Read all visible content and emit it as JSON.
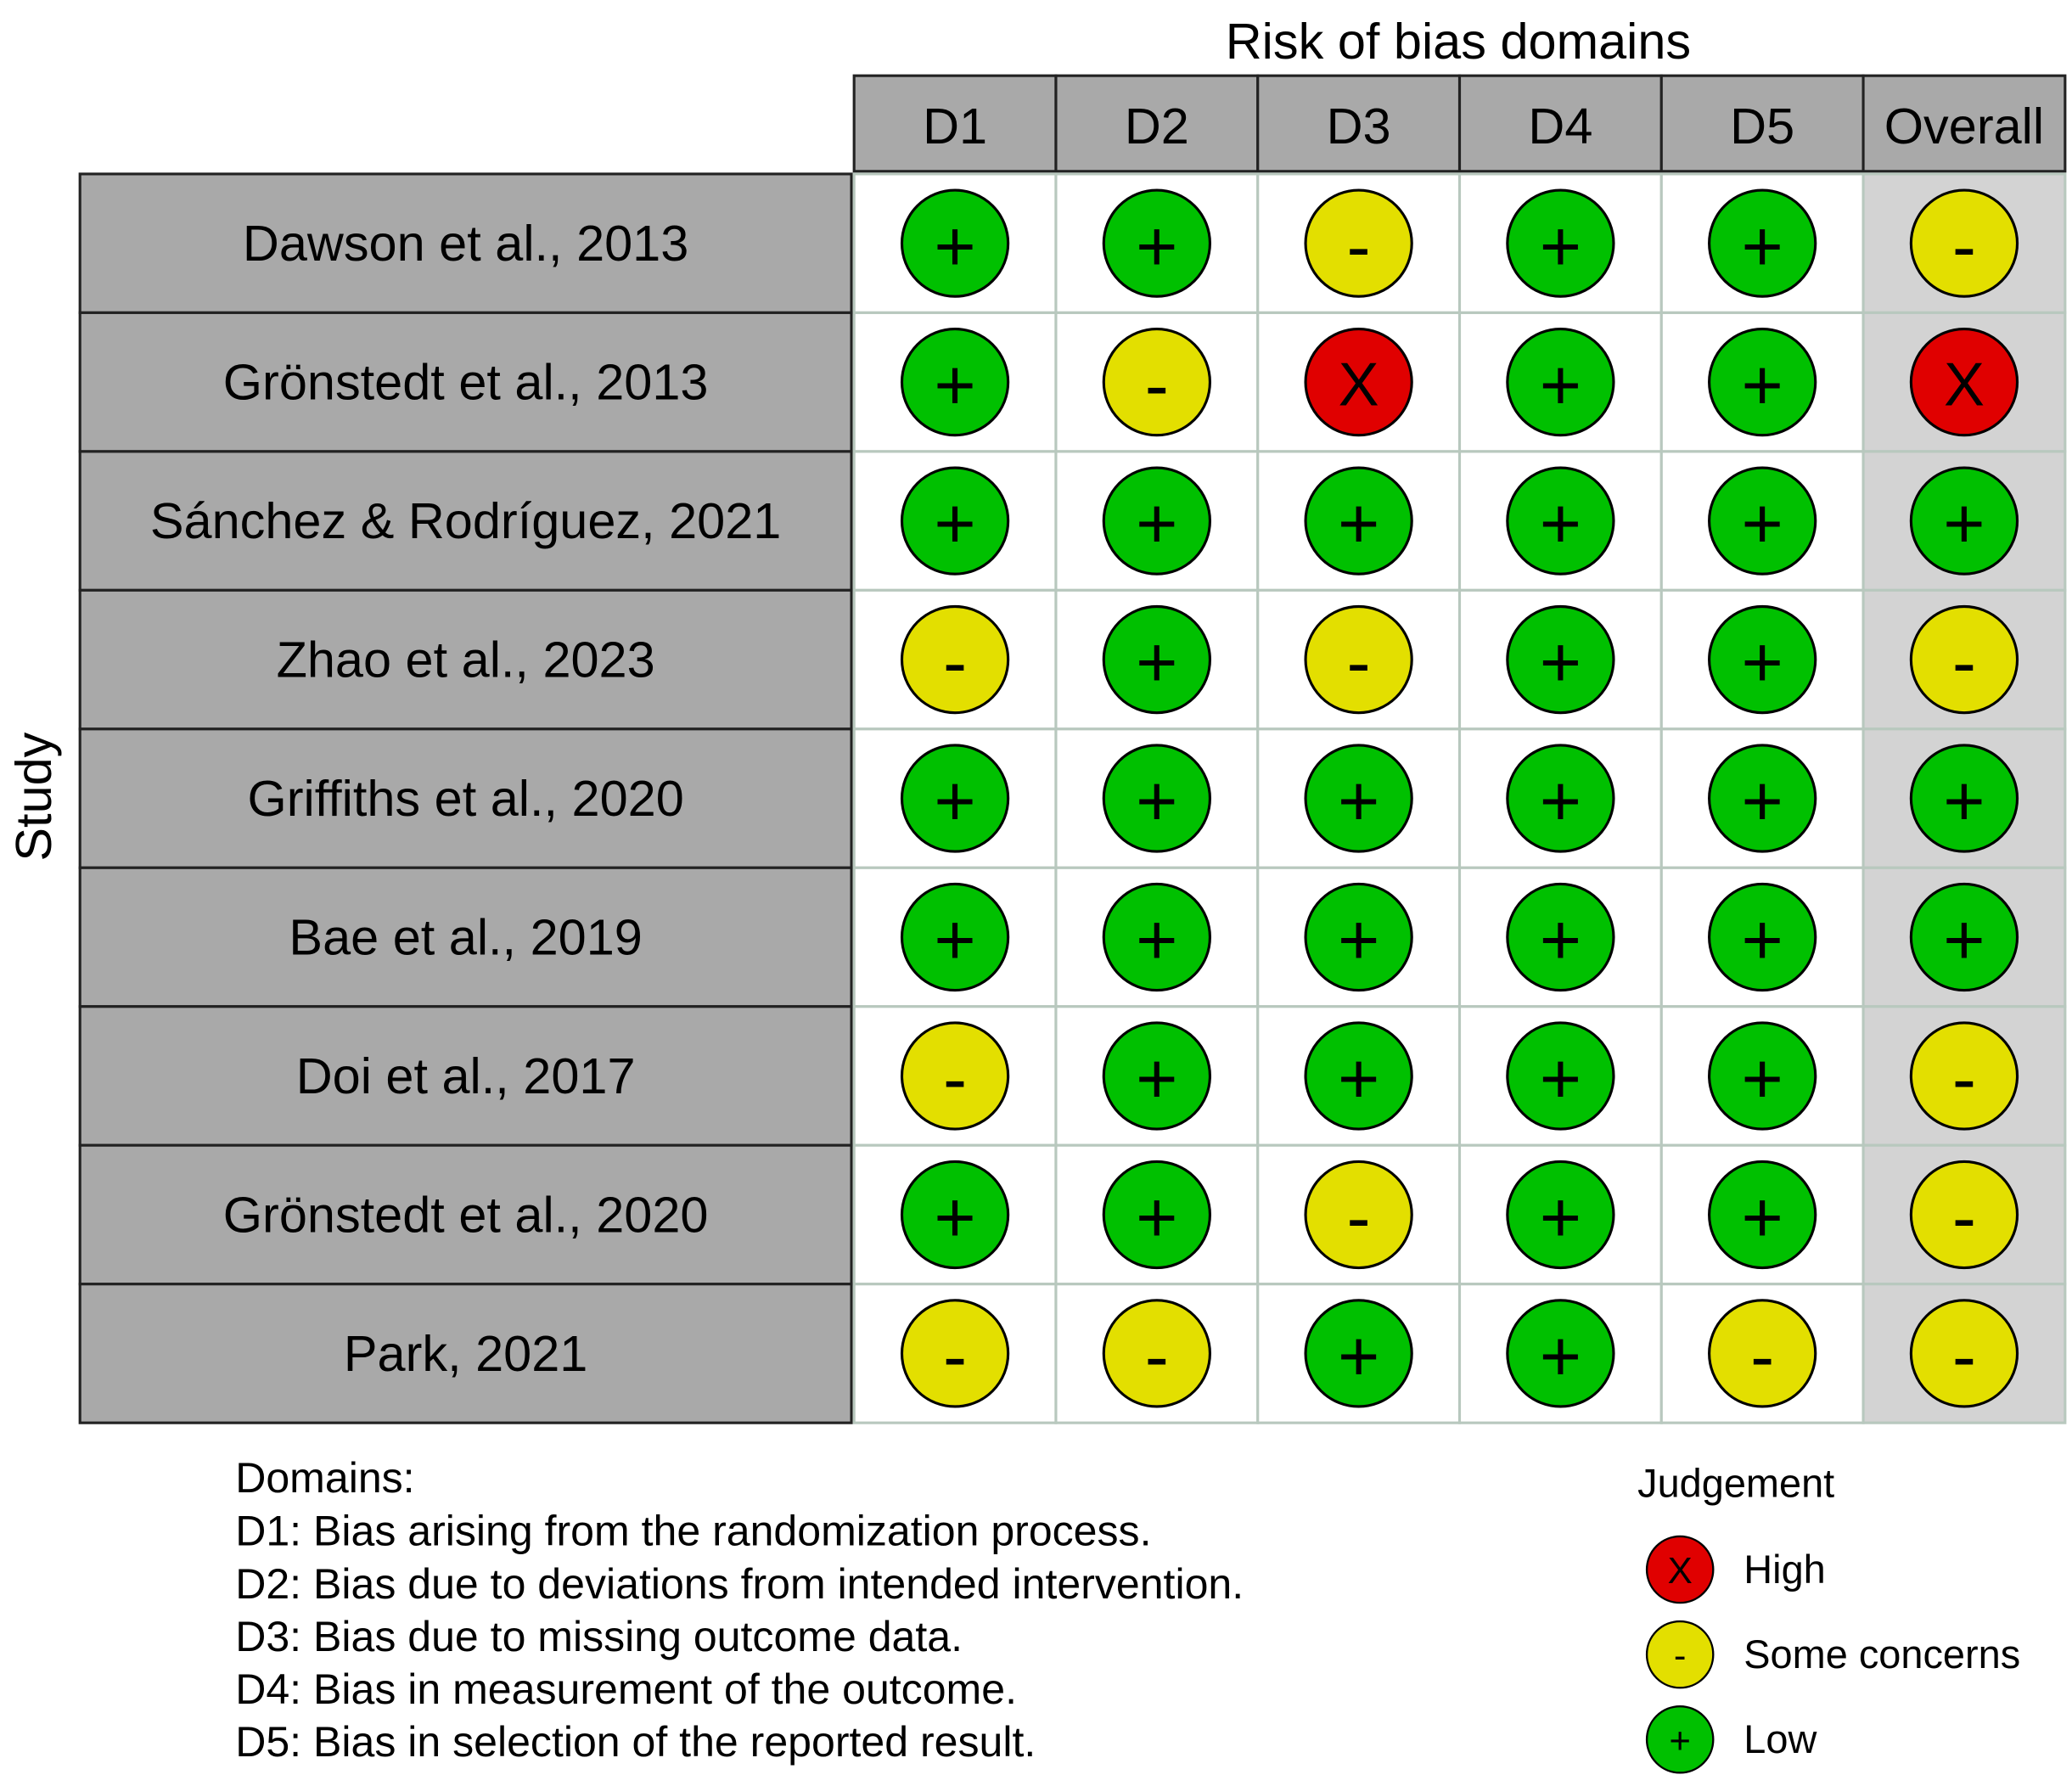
{
  "title": "Risk of bias domains",
  "row_axis_label": "Study",
  "columns": [
    "D1",
    "D2",
    "D3",
    "D4",
    "D5",
    "Overall"
  ],
  "rows": [
    {
      "study": "Dawson et al., 2013",
      "judgements": [
        "+",
        "+",
        "-",
        "+",
        "+",
        "-"
      ]
    },
    {
      "study": "Grönstedt et al., 2013",
      "judgements": [
        "+",
        "-",
        "X",
        "+",
        "+",
        "X"
      ]
    },
    {
      "study": "Sánchez & Rodríguez, 2021",
      "judgements": [
        "+",
        "+",
        "+",
        "+",
        "+",
        "+"
      ]
    },
    {
      "study": "Zhao et al., 2023",
      "judgements": [
        "-",
        "+",
        "-",
        "+",
        "+",
        "-"
      ]
    },
    {
      "study": "Griffiths et al., 2020",
      "judgements": [
        "+",
        "+",
        "+",
        "+",
        "+",
        "+"
      ]
    },
    {
      "study": "Bae et al., 2019",
      "judgements": [
        "+",
        "+",
        "+",
        "+",
        "+",
        "+"
      ]
    },
    {
      "study": "Doi et al., 2017",
      "judgements": [
        "-",
        "+",
        "+",
        "+",
        "+",
        "-"
      ]
    },
    {
      "study": "Grönstedt et al., 2020",
      "judgements": [
        "+",
        "+",
        "-",
        "+",
        "+",
        "-"
      ]
    },
    {
      "study": "Park, 2021",
      "judgements": [
        "-",
        "-",
        "+",
        "+",
        "-",
        "-"
      ]
    }
  ],
  "domains_heading": "Domains:",
  "domains": [
    "D1: Bias arising from the randomization process.",
    "D2: Bias due to deviations from intended intervention.",
    "D3: Bias due to missing outcome data.",
    "D4: Bias in measurement of the outcome.",
    "D5: Bias in selection of the reported result."
  ],
  "legend": {
    "title": "Judgement",
    "items": [
      {
        "symbol": "X",
        "label": "High",
        "color": "#e00000"
      },
      {
        "symbol": "-",
        "label": "Some concerns",
        "color": "#e3df00"
      },
      {
        "symbol": "+",
        "label": "Low",
        "color": "#00c000"
      }
    ]
  }
}
